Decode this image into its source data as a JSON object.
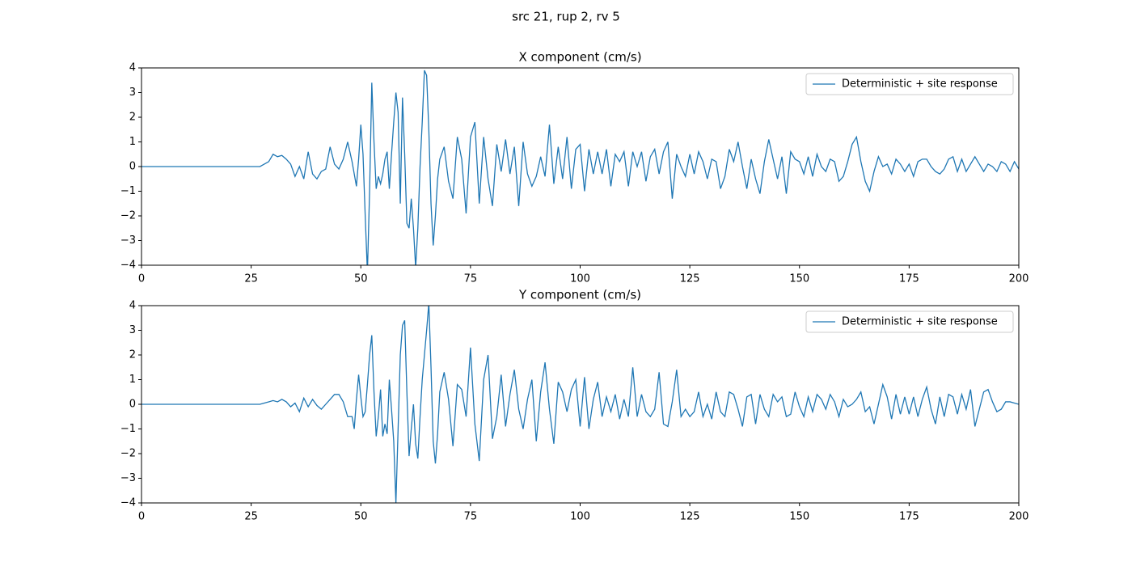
{
  "title": "src 21, rup 2, rv 5",
  "chart_data": [
    {
      "type": "line",
      "title": "X component (cm/s)",
      "x": [
        0,
        27,
        28,
        29,
        30,
        31,
        32,
        33,
        34,
        35,
        36,
        37,
        38,
        39,
        40,
        41,
        42,
        43,
        44,
        45,
        46,
        47,
        48,
        48.5,
        49,
        49.5,
        50,
        50.5,
        51,
        51.5,
        52,
        52.5,
        53,
        53.5,
        54,
        54.5,
        55,
        55.5,
        56,
        56.5,
        57,
        57.5,
        58,
        58.5,
        59,
        59.5,
        60,
        60.5,
        61,
        61.5,
        62,
        62.5,
        63,
        63.5,
        64,
        64.5,
        65,
        65.5,
        66,
        66.5,
        67,
        67.5,
        68,
        69,
        70,
        71,
        72,
        73,
        74,
        75,
        76,
        77,
        78,
        79,
        80,
        81,
        82,
        83,
        84,
        85,
        86,
        87,
        88,
        89,
        90,
        91,
        92,
        93,
        94,
        95,
        96,
        97,
        98,
        99,
        100,
        101,
        102,
        103,
        104,
        105,
        106,
        107,
        108,
        109,
        110,
        111,
        112,
        113,
        114,
        115,
        116,
        117,
        118,
        119,
        120,
        121,
        122,
        123,
        124,
        125,
        126,
        127,
        128,
        129,
        130,
        131,
        132,
        133,
        134,
        135,
        136,
        137,
        138,
        139,
        140,
        141,
        142,
        143,
        144,
        145,
        146,
        147,
        148,
        149,
        150,
        151,
        152,
        153,
        154,
        155,
        156,
        157,
        158,
        159,
        160,
        161,
        162,
        163,
        164,
        165,
        166,
        167,
        168,
        169,
        170,
        171,
        172,
        173,
        174,
        175,
        176,
        177,
        178,
        179,
        180,
        181,
        182,
        183,
        184,
        185,
        186,
        187,
        188,
        189,
        190,
        191,
        192,
        193,
        194,
        195,
        196,
        197,
        198,
        199,
        200
      ],
      "series": [
        {
          "name": "Deterministic + site response",
          "color": "#1f77b4",
          "values": [
            0,
            0,
            0.1,
            0.2,
            0.5,
            0.4,
            0.45,
            0.3,
            0.1,
            -0.4,
            0,
            -0.5,
            0.6,
            -0.3,
            -0.5,
            -0.2,
            -0.1,
            0.8,
            0.1,
            -0.1,
            0.3,
            1.0,
            0.2,
            -0.3,
            -0.8,
            0.3,
            1.7,
            0.5,
            -2.0,
            -4.3,
            -1.0,
            3.4,
            1.0,
            -0.9,
            -0.4,
            -0.7,
            -0.3,
            0.3,
            0.6,
            -0.9,
            0.5,
            1.8,
            3.0,
            2.2,
            -1.5,
            2.8,
            0.5,
            -2.3,
            -2.5,
            -1.3,
            -2.5,
            -4.1,
            -2.5,
            0,
            1.8,
            3.9,
            3.7,
            1.5,
            -1.5,
            -3.2,
            -2.0,
            -0.5,
            0.3,
            0.8,
            -0.6,
            -1.3,
            1.2,
            0.3,
            -1.9,
            1.2,
            1.8,
            -1.5,
            1.2,
            -0.5,
            -1.6,
            0.9,
            -0.2,
            1.1,
            -0.3,
            0.8,
            -1.6,
            1.0,
            -0.3,
            -0.8,
            -0.4,
            0.4,
            -0.4,
            1.7,
            -0.7,
            0.8,
            -0.5,
            1.2,
            -0.9,
            0.7,
            0.9,
            -1.0,
            0.7,
            -0.3,
            0.6,
            -0.3,
            0.7,
            -0.8,
            0.5,
            0.2,
            0.6,
            -0.8,
            0.6,
            0,
            0.6,
            -0.6,
            0.4,
            0.7,
            -0.3,
            0.6,
            1.0,
            -1.3,
            0.5,
            0,
            -0.4,
            0.5,
            -0.3,
            0.6,
            0.2,
            -0.5,
            0.3,
            0.2,
            -0.9,
            -0.4,
            0.7,
            0.2,
            1.0,
            0,
            -0.9,
            0.3,
            -0.5,
            -1.1,
            0.2,
            1.1,
            0.3,
            -0.5,
            0.4,
            -1.1,
            0.6,
            0.3,
            0.2,
            -0.3,
            0.4,
            -0.4,
            0.5,
            0,
            -0.2,
            0.3,
            0.2,
            -0.6,
            -0.4,
            0.2,
            0.9,
            1.2,
            0.2,
            -0.6,
            -1.0,
            -0.2,
            0.4,
            0,
            0.1,
            -0.3,
            0.3,
            0.1,
            -0.2,
            0.1,
            -0.4,
            0.2,
            0.3,
            0.3,
            0,
            -0.2,
            -0.3,
            -0.1,
            0.3,
            0.4,
            -0.2,
            0.3,
            -0.2,
            0.1,
            0.4,
            0.1,
            -0.2,
            0.1,
            0,
            -0.2,
            0.2,
            0.1,
            -0.2,
            0.2,
            -0.1
          ]
        }
      ],
      "xlim": [
        0,
        200
      ],
      "ylim": [
        -4,
        4
      ],
      "xticks": [
        0,
        25,
        50,
        75,
        100,
        125,
        150,
        175,
        200
      ],
      "yticks": [
        {
          "value": -4,
          "label": "−4"
        },
        {
          "value": -3,
          "label": "−3"
        },
        {
          "value": -2,
          "label": "−2"
        },
        {
          "value": -1,
          "label": "−1"
        },
        0,
        1,
        2,
        3,
        4
      ],
      "legend": "upper right"
    },
    {
      "type": "line",
      "title": "Y component (cm/s)",
      "x": [
        0,
        27,
        28,
        29,
        30,
        31,
        32,
        33,
        34,
        35,
        36,
        37,
        38,
        39,
        40,
        41,
        42,
        43,
        44,
        45,
        46,
        47,
        48,
        48.5,
        49,
        49.5,
        50,
        50.5,
        51,
        51.5,
        52,
        52.5,
        53,
        53.5,
        54,
        54.5,
        55,
        55.5,
        56,
        56.5,
        57,
        57.5,
        58,
        58.5,
        59,
        59.5,
        60,
        60.5,
        61,
        61.5,
        62,
        62.5,
        63,
        63.5,
        64,
        64.5,
        65,
        65.5,
        66,
        66.5,
        67,
        67.5,
        68,
        69,
        70,
        71,
        72,
        73,
        74,
        75,
        76,
        77,
        78,
        79,
        80,
        81,
        82,
        83,
        84,
        85,
        86,
        87,
        88,
        89,
        90,
        91,
        92,
        93,
        94,
        95,
        96,
        97,
        98,
        99,
        100,
        101,
        102,
        103,
        104,
        105,
        106,
        107,
        108,
        109,
        110,
        111,
        112,
        113,
        114,
        115,
        116,
        117,
        118,
        119,
        120,
        121,
        122,
        123,
        124,
        125,
        126,
        127,
        128,
        129,
        130,
        131,
        132,
        133,
        134,
        135,
        136,
        137,
        138,
        139,
        140,
        141,
        142,
        143,
        144,
        145,
        146,
        147,
        148,
        149,
        150,
        151,
        152,
        153,
        154,
        155,
        156,
        157,
        158,
        159,
        160,
        161,
        162,
        163,
        164,
        165,
        166,
        167,
        168,
        169,
        170,
        171,
        172,
        173,
        174,
        175,
        176,
        177,
        178,
        179,
        180,
        181,
        182,
        183,
        184,
        185,
        186,
        187,
        188,
        189,
        190,
        191,
        192,
        193,
        194,
        195,
        196,
        197,
        198,
        199,
        200
      ],
      "series": [
        {
          "name": "Deterministic + site response",
          "color": "#1f77b4",
          "values": [
            0,
            0,
            0.05,
            0.1,
            0.15,
            0.1,
            0.2,
            0.1,
            -0.1,
            0.05,
            -0.3,
            0.25,
            -0.1,
            0.2,
            -0.05,
            -0.2,
            0,
            0.2,
            0.4,
            0.4,
            0.1,
            -0.5,
            -0.5,
            -1.0,
            0.2,
            1.2,
            0.3,
            -0.5,
            -0.3,
            0.8,
            2.0,
            2.8,
            0.5,
            -1.3,
            -0.5,
            0.6,
            -1.3,
            -0.8,
            -1.2,
            1.0,
            -0.2,
            -1.5,
            -4.0,
            -1.0,
            2.0,
            3.2,
            3.4,
            0.5,
            -2.1,
            -1.0,
            0.0,
            -1.6,
            -2.2,
            -0.5,
            1.0,
            2.0,
            3.0,
            4.1,
            1.5,
            -1.5,
            -2.4,
            -1.2,
            0.5,
            1.3,
            0.2,
            -1.7,
            0.8,
            0.6,
            -0.5,
            2.3,
            -0.8,
            -2.3,
            1.0,
            2.0,
            -1.4,
            -0.5,
            1.2,
            -0.9,
            0.4,
            1.4,
            -0.2,
            -1.0,
            0.2,
            1.0,
            -1.5,
            0.5,
            1.7,
            -0.2,
            -1.6,
            0.9,
            0.5,
            -0.3,
            0.6,
            1.0,
            -0.9,
            1.1,
            -1.0,
            0.2,
            0.9,
            -0.5,
            0.3,
            -0.3,
            0.4,
            -0.6,
            0.2,
            -0.5,
            1.5,
            -0.5,
            0.4,
            -0.3,
            -0.5,
            -0.2,
            1.3,
            -0.8,
            -0.9,
            0.1,
            1.4,
            -0.5,
            -0.2,
            -0.5,
            -0.3,
            0.5,
            -0.5,
            0,
            -0.6,
            0.5,
            -0.3,
            -0.5,
            0.5,
            0.4,
            -0.2,
            -0.9,
            0.3,
            0.4,
            -0.8,
            0.4,
            -0.2,
            -0.5,
            0.4,
            0.1,
            0.3,
            -0.5,
            -0.4,
            0.5,
            -0.1,
            -0.5,
            0.3,
            -0.3,
            0.4,
            0.2,
            -0.2,
            0.4,
            0.1,
            -0.5,
            0.2,
            -0.1,
            0.0,
            0.2,
            0.5,
            -0.3,
            -0.1,
            -0.8,
            0.0,
            0.8,
            0.3,
            -0.6,
            0.4,
            -0.4,
            0.3,
            -0.4,
            0.3,
            -0.5,
            0.2,
            0.7,
            -0.2,
            -0.8,
            0.3,
            -0.5,
            0.4,
            0.3,
            -0.4,
            0.4,
            -0.2,
            0.6,
            -0.9,
            -0.2,
            0.5,
            0.6,
            0.1,
            -0.3,
            -0.2,
            0.1,
            0.1,
            0.05,
            0
          ]
        }
      ],
      "xlim": [
        0,
        200
      ],
      "ylim": [
        -4,
        4
      ],
      "xticks": [
        0,
        25,
        50,
        75,
        100,
        125,
        150,
        175,
        200
      ],
      "yticks": [
        {
          "value": -4,
          "label": "−4"
        },
        {
          "value": -3,
          "label": "−3"
        },
        {
          "value": -2,
          "label": "−2"
        },
        {
          "value": -1,
          "label": "−1"
        },
        0,
        1,
        2,
        3,
        4
      ],
      "legend": "upper right"
    }
  ]
}
